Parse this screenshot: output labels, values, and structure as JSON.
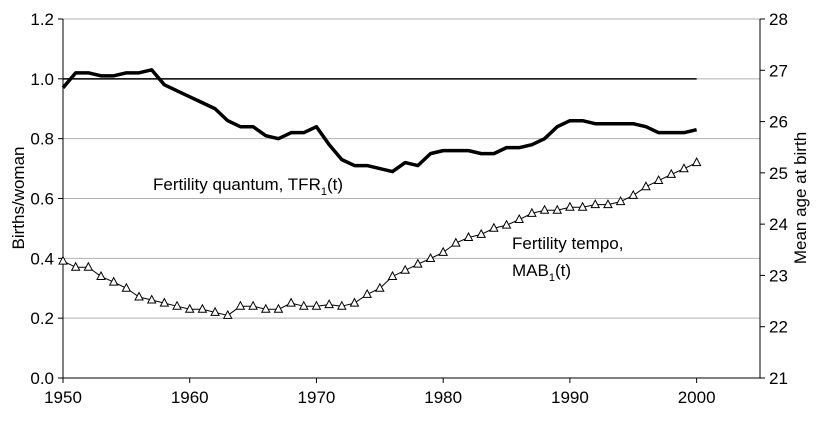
{
  "chart_data": {
    "type": "line",
    "y_label": "Births/woman",
    "y2_label": "Mean age at birth",
    "x": [
      1950,
      1951,
      1952,
      1953,
      1954,
      1955,
      1956,
      1957,
      1958,
      1959,
      1960,
      1961,
      1962,
      1963,
      1964,
      1965,
      1966,
      1967,
      1968,
      1969,
      1970,
      1971,
      1972,
      1973,
      1974,
      1975,
      1976,
      1977,
      1978,
      1979,
      1980,
      1981,
      1982,
      1983,
      1984,
      1985,
      1986,
      1987,
      1988,
      1989,
      1990,
      1991,
      1992,
      1993,
      1994,
      1995,
      1996,
      1997,
      1998,
      1999,
      2000
    ],
    "series": [
      {
        "name": "Fertility quantum, TFR1(t)",
        "color": "#000000",
        "axis": "y",
        "marker": "none",
        "values": [
          0.97,
          1.02,
          1.02,
          1.01,
          1.01,
          1.02,
          1.02,
          1.03,
          0.98,
          0.96,
          0.94,
          0.92,
          0.9,
          0.86,
          0.84,
          0.84,
          0.81,
          0.8,
          0.82,
          0.82,
          0.84,
          0.78,
          0.73,
          0.71,
          0.71,
          0.7,
          0.69,
          0.72,
          0.71,
          0.75,
          0.76,
          0.76,
          0.76,
          0.75,
          0.75,
          0.77,
          0.77,
          0.78,
          0.8,
          0.84,
          0.86,
          0.86,
          0.85,
          0.85,
          0.85,
          0.85,
          0.84,
          0.82,
          0.82,
          0.82,
          0.83
        ]
      },
      {
        "name": "Fertility tempo, MAB1(t)",
        "color": "#000000",
        "axis": "y2",
        "marker": "triangle",
        "values": [
          23.28,
          23.16,
          23.16,
          22.98,
          22.87,
          22.75,
          22.58,
          22.52,
          22.46,
          22.4,
          22.34,
          22.34,
          22.28,
          22.22,
          22.4,
          22.4,
          22.34,
          22.34,
          22.46,
          22.4,
          22.4,
          22.43,
          22.4,
          22.46,
          22.63,
          22.75,
          22.98,
          23.1,
          23.22,
          23.33,
          23.45,
          23.63,
          23.74,
          23.8,
          23.92,
          23.98,
          24.09,
          24.21,
          24.27,
          24.27,
          24.33,
          24.33,
          24.38,
          24.38,
          24.44,
          24.56,
          24.73,
          24.85,
          24.97,
          25.08,
          25.2
        ]
      }
    ],
    "annotations": [
      {
        "lines": [
          [
            "Fertility quantum, TFR",
            "1",
            "(t)"
          ]
        ]
      },
      {
        "lines": [
          [
            "Fertility tempo,"
          ],
          [
            "MAB",
            "1",
            "(t)"
          ]
        ]
      }
    ],
    "reference_line": {
      "y": 1.0,
      "x": [
        1950,
        2000
      ]
    },
    "xlim": [
      1950,
      2005
    ],
    "xticks": [
      1950,
      1960,
      1970,
      1980,
      1990,
      2000
    ],
    "ylim": [
      0,
      1.2
    ],
    "yticks": [
      {
        "value": 0,
        "label": "0.0"
      },
      0.2,
      0.4,
      0.6,
      0.8,
      {
        "value": 1,
        "label": "1.0"
      },
      1.2
    ],
    "y2lim": [
      21,
      28
    ],
    "y2ticks": [
      21,
      22,
      23,
      24,
      25,
      26,
      27,
      28
    ],
    "grid": true
  }
}
